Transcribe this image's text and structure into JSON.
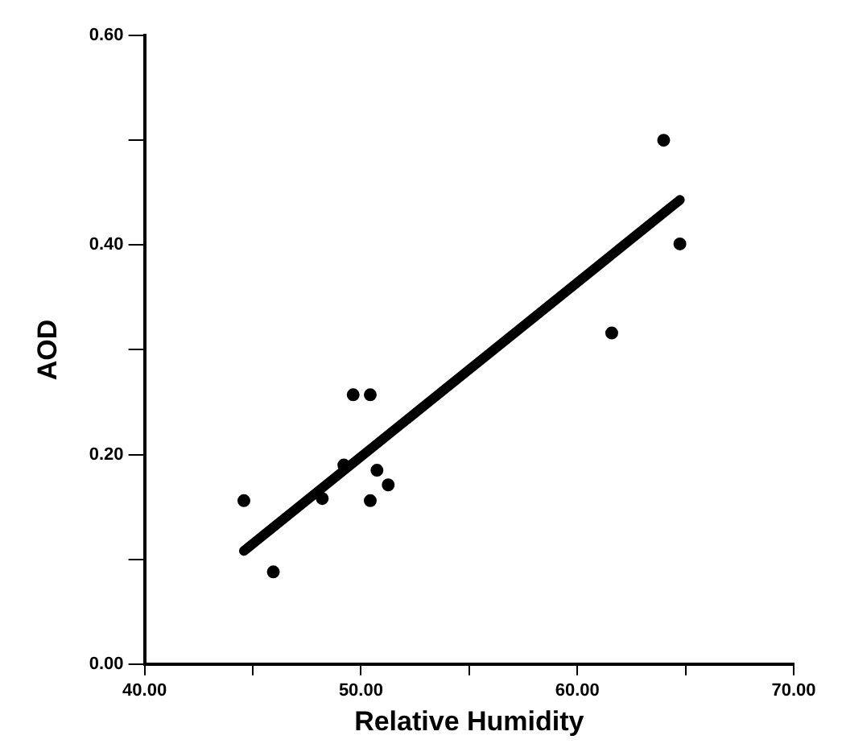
{
  "chart_data": {
    "type": "scatter",
    "xlabel": "Relative Humidity",
    "ylabel": "AOD",
    "xlim": [
      40,
      70
    ],
    "xticks": [
      {
        "value": 40,
        "label": "40.00"
      },
      {
        "value": 45,
        "label": null
      },
      {
        "value": 50,
        "label": "50.00"
      },
      {
        "value": 55,
        "label": null
      },
      {
        "value": 60,
        "label": "60.00"
      },
      {
        "value": 65,
        "label": null
      },
      {
        "value": 70,
        "label": "70.00"
      }
    ],
    "ylim": [
      0,
      0.6
    ],
    "yticks": [
      {
        "value": 0,
        "label": "0.00"
      },
      {
        "value": 0.1,
        "label": null
      },
      {
        "value": 0.2,
        "label": "0.20"
      },
      {
        "value": 0.3,
        "label": null
      },
      {
        "value": 0.4,
        "label": "0.40"
      },
      {
        "value": 0.5,
        "label": null
      },
      {
        "value": 0.6,
        "label": "0.60"
      }
    ],
    "grid": false,
    "legend": false,
    "marker": "circle",
    "series": [
      {
        "type": "scatter",
        "color": "#000000",
        "x": [
          44.59,
          45.95,
          48.21,
          49.21,
          49.64,
          50.43,
          50.74,
          51.26,
          50.43,
          61.59,
          64.74,
          63.99
        ],
        "values": [
          0.156,
          0.088,
          0.158,
          0.19,
          0.257,
          0.257,
          0.185,
          0.171,
          0.156,
          0.316,
          0.401,
          0.5
        ]
      },
      {
        "type": "line",
        "color": "#000000",
        "marker": "none",
        "x": [
          44.59,
          64.74
        ],
        "values": [
          0.108,
          0.443
        ]
      }
    ]
  }
}
